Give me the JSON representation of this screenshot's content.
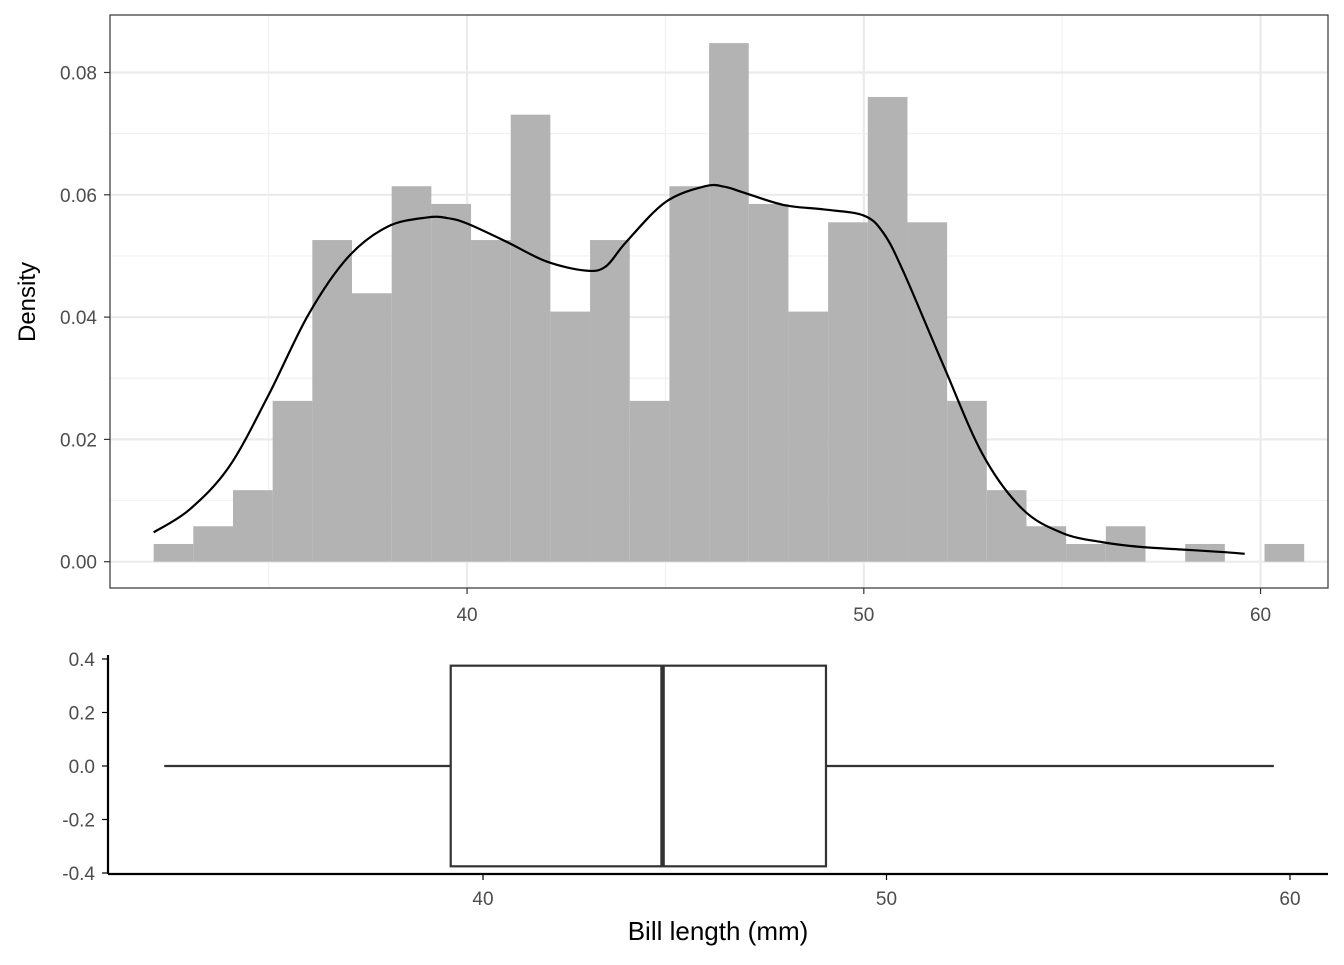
{
  "chart_data": [
    {
      "type": "bar",
      "subtype": "histogram-with-density",
      "ylabel": "Density",
      "xlabel": "",
      "xlim": [
        31.0,
        61.7
      ],
      "ylim": [
        -0.0043,
        0.0894
      ],
      "x_ticks": [
        40,
        50,
        60
      ],
      "x_tick_labels": [
        "40",
        "50",
        "60"
      ],
      "y_ticks": [
        0,
        0.02,
        0.04,
        0.06,
        0.08
      ],
      "y_tick_labels": [
        "0.00",
        "0.02",
        "0.04",
        "0.06",
        "0.08"
      ],
      "grid": true,
      "bin_width": 1.0,
      "bins": [
        {
          "start": 32.1,
          "end": 33.1,
          "density": 0.0029
        },
        {
          "start": 33.1,
          "end": 34.1,
          "density": 0.0058
        },
        {
          "start": 34.1,
          "end": 35.1,
          "density": 0.0117
        },
        {
          "start": 35.1,
          "end": 36.1,
          "density": 0.0263
        },
        {
          "start": 36.1,
          "end": 37.1,
          "density": 0.0526
        },
        {
          "start": 37.1,
          "end": 38.1,
          "density": 0.0439
        },
        {
          "start": 38.1,
          "end": 39.1,
          "density": 0.0614
        },
        {
          "start": 39.1,
          "end": 40.1,
          "density": 0.0585
        },
        {
          "start": 40.1,
          "end": 41.1,
          "density": 0.0526
        },
        {
          "start": 41.1,
          "end": 42.1,
          "density": 0.0731
        },
        {
          "start": 42.1,
          "end": 43.1,
          "density": 0.0409
        },
        {
          "start": 43.1,
          "end": 44.1,
          "density": 0.0526
        },
        {
          "start": 44.1,
          "end": 45.1,
          "density": 0.0263
        },
        {
          "start": 45.1,
          "end": 46.1,
          "density": 0.0614
        },
        {
          "start": 46.1,
          "end": 47.1,
          "density": 0.0848
        },
        {
          "start": 47.1,
          "end": 48.1,
          "density": 0.0585
        },
        {
          "start": 48.1,
          "end": 49.1,
          "density": 0.0409
        },
        {
          "start": 49.1,
          "end": 50.1,
          "density": 0.0555
        },
        {
          "start": 50.1,
          "end": 51.1,
          "density": 0.076
        },
        {
          "start": 51.1,
          "end": 52.1,
          "density": 0.0555
        },
        {
          "start": 52.1,
          "end": 53.1,
          "density": 0.0263
        },
        {
          "start": 53.1,
          "end": 54.1,
          "density": 0.0117
        },
        {
          "start": 54.1,
          "end": 55.1,
          "density": 0.0058
        },
        {
          "start": 55.1,
          "end": 56.1,
          "density": 0.0029
        },
        {
          "start": 56.1,
          "end": 57.1,
          "density": 0.0058
        },
        {
          "start": 57.1,
          "end": 58.1,
          "density": 0
        },
        {
          "start": 58.1,
          "end": 59.1,
          "density": 0.0029
        },
        {
          "start": 59.1,
          "end": 60.1,
          "density": 0
        },
        {
          "start": 60.1,
          "end": 61.1,
          "density": 0.0029
        }
      ],
      "density_curve": {
        "x": [
          32.1,
          33.0,
          34.0,
          35.0,
          36.0,
          37.0,
          38.0,
          39.0,
          39.5,
          40.0,
          41.0,
          42.0,
          43.0,
          43.5,
          44.0,
          45.0,
          46.0,
          46.5,
          47.0,
          48.0,
          49.0,
          50.0,
          50.5,
          51.0,
          52.0,
          53.0,
          54.0,
          55.0,
          56.0,
          57.0,
          58.0,
          59.0,
          59.6
        ],
        "y": [
          0.0048,
          0.0085,
          0.0155,
          0.0273,
          0.0404,
          0.0498,
          0.0548,
          0.0563,
          0.0562,
          0.0553,
          0.0523,
          0.0491,
          0.0476,
          0.0483,
          0.0522,
          0.0588,
          0.0614,
          0.0613,
          0.0603,
          0.0583,
          0.0576,
          0.0566,
          0.0537,
          0.0474,
          0.0322,
          0.0175,
          0.0086,
          0.0047,
          0.0032,
          0.0024,
          0.002,
          0.0016,
          0.0013
        ]
      },
      "colors": {
        "bars": "#b3b3b3",
        "curve": "#000000",
        "grid_major": "#ebebeb",
        "grid_minor": "#f2f2f2",
        "panel_border": "#333333"
      }
    },
    {
      "type": "boxplot",
      "xlabel": "Bill length (mm)",
      "ylabel": "",
      "xlim": [
        31.0,
        61.0
      ],
      "ylim": [
        -0.4,
        0.4
      ],
      "x_ticks": [
        40,
        50,
        60
      ],
      "x_tick_labels": [
        "40",
        "50",
        "60"
      ],
      "y_ticks": [
        -0.4,
        -0.2,
        0,
        0.2,
        0.4
      ],
      "y_tick_labels": [
        "-0.4",
        "-0.2",
        "0.0",
        "0.2",
        "0.4"
      ],
      "grid": false,
      "box": {
        "min": 32.1,
        "q1": 39.2,
        "median": 44.45,
        "q3": 48.5,
        "max": 59.6,
        "half_height": 0.375
      },
      "colors": {
        "box_fill": "#ffffff",
        "box_line": "#333333",
        "axis": "#000000"
      }
    }
  ]
}
